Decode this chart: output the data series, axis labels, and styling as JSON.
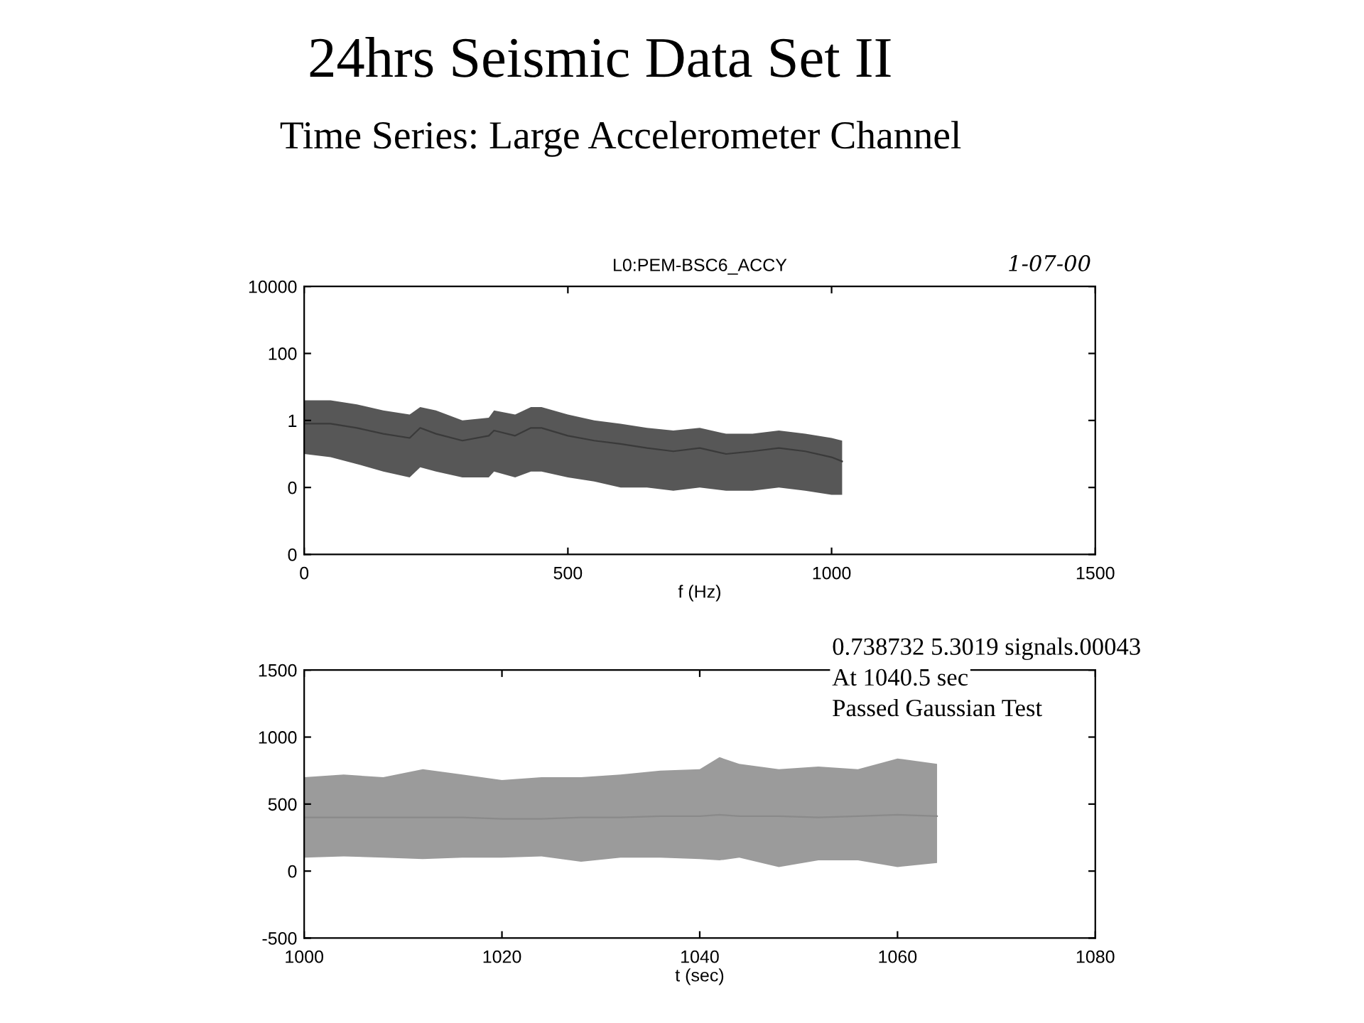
{
  "chart_data": [
    {
      "type": "line",
      "title": "24hrs Seismic Data Set II",
      "subtitle": "Time Series: Large Accelerometer Channel",
      "annotations": [
        "L0:PEM-BSC6_ACCY",
        "1-07-00"
      ],
      "xlabel": "f (Hz)",
      "log": "y",
      "xlim": [
        0,
        1500
      ],
      "xticks": [
        0,
        500,
        1000,
        1500
      ],
      "ylim": [
        0.0001,
        10000
      ],
      "yticks": [
        {
          "value": 0.0001,
          "label": "0"
        },
        {
          "value": 0.01,
          "label": "0"
        },
        1,
        100,
        10000
      ],
      "grid": false,
      "marker": "none",
      "line_style": "solid",
      "x": [
        0,
        50,
        100,
        150,
        200,
        220,
        250,
        300,
        350,
        360,
        400,
        430,
        450,
        500,
        550,
        600,
        650,
        700,
        750,
        800,
        850,
        900,
        950,
        1000,
        1020
      ],
      "series": [
        {
          "color": "#3a3a3a",
          "values": [
            0.8,
            0.8,
            0.6,
            0.4,
            0.3,
            0.6,
            0.4,
            0.25,
            0.35,
            0.5,
            0.35,
            0.6,
            0.6,
            0.35,
            0.25,
            0.2,
            0.15,
            0.12,
            0.15,
            0.1,
            0.12,
            0.15,
            0.12,
            0.08,
            0.06
          ],
          "lower": [
            0.1,
            0.08,
            0.05,
            0.03,
            0.02,
            0.04,
            0.03,
            0.02,
            0.02,
            0.03,
            0.02,
            0.03,
            0.03,
            0.02,
            0.015,
            0.01,
            0.01,
            0.008,
            0.01,
            0.008,
            0.008,
            0.01,
            0.008,
            0.006,
            0.006
          ],
          "upper": [
            4,
            4,
            3,
            2,
            1.5,
            2.5,
            2,
            1,
            1.2,
            2,
            1.5,
            2.5,
            2.5,
            1.5,
            1,
            0.8,
            0.6,
            0.5,
            0.6,
            0.4,
            0.4,
            0.5,
            0.4,
            0.3,
            0.25
          ]
        }
      ]
    },
    {
      "type": "line",
      "annotations": [
        "0.738732 5.3019 signals.00043",
        "At 1040.5 sec",
        "Passed Gaussian Test"
      ],
      "xlabel": "t (sec)",
      "xlim": [
        1000,
        1080
      ],
      "xticks": [
        1000,
        1020,
        1040,
        1060,
        1080
      ],
      "ylim": [
        -500,
        1500
      ],
      "yticks": [
        -500,
        0,
        500,
        1000,
        1500
      ],
      "grid": false,
      "marker": "none",
      "line_style": "solid",
      "x": [
        1000,
        1004,
        1008,
        1012,
        1016,
        1020,
        1024,
        1028,
        1032,
        1036,
        1040,
        1042,
        1044,
        1048,
        1052,
        1056,
        1060,
        1064
      ],
      "series": [
        {
          "color": "#8a8a8a",
          "values": [
            400,
            400,
            400,
            400,
            400,
            390,
            390,
            400,
            400,
            410,
            410,
            420,
            410,
            410,
            400,
            410,
            420,
            410
          ],
          "lower": [
            100,
            110,
            100,
            90,
            100,
            100,
            110,
            70,
            100,
            100,
            90,
            80,
            100,
            30,
            80,
            80,
            30,
            60
          ],
          "upper": [
            700,
            720,
            700,
            760,
            720,
            680,
            700,
            700,
            720,
            750,
            760,
            850,
            800,
            760,
            780,
            760,
            840,
            800
          ]
        }
      ]
    }
  ]
}
